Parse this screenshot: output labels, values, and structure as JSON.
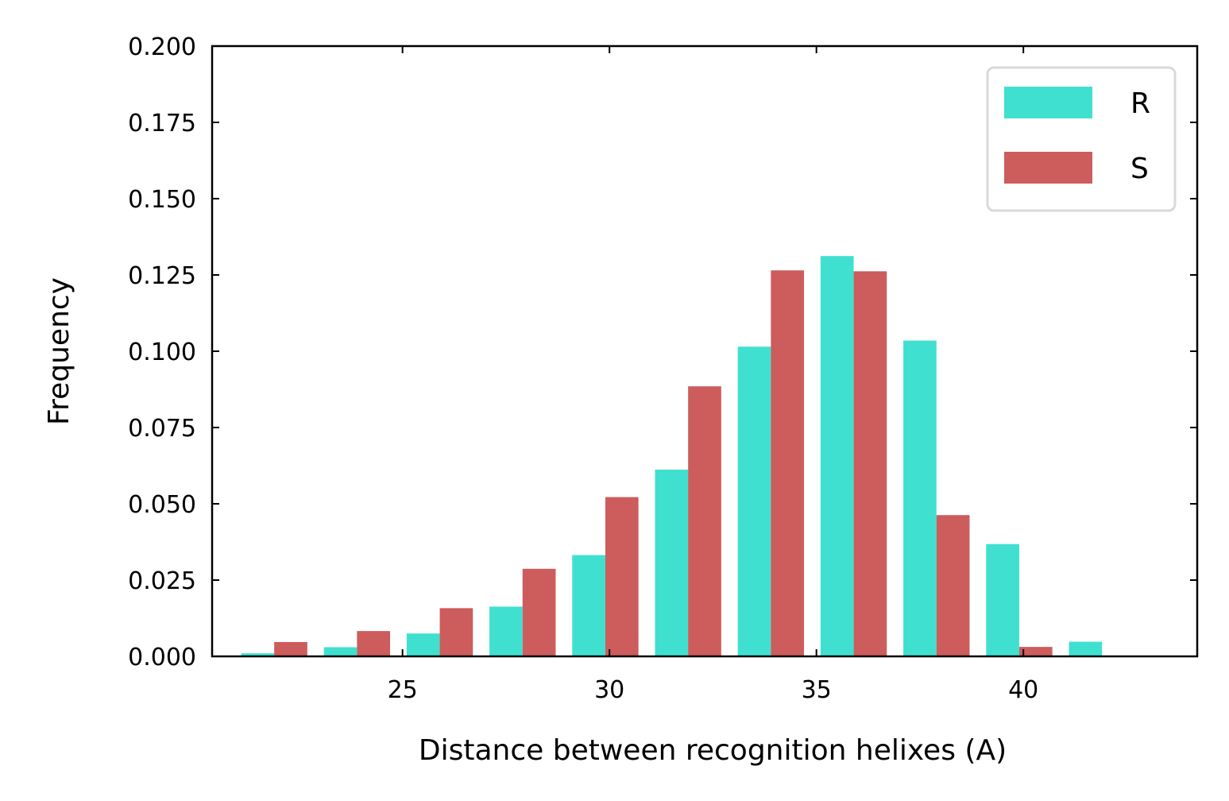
{
  "chart_data": {
    "type": "bar",
    "xlabel": "Distance between recognition helixes (A)",
    "ylabel": "Frequency",
    "xlim": [
      20.4,
      44.2
    ],
    "ylim": [
      0,
      0.2
    ],
    "xticks": [
      25,
      30,
      35,
      40
    ],
    "xtick_labels": [
      "25",
      "30",
      "35",
      "40"
    ],
    "yticks": [
      0,
      0.025,
      0.05,
      0.075,
      0.1,
      0.125,
      0.15,
      0.175,
      0.2
    ],
    "ytick_labels": [
      "0.000",
      "0.025",
      "0.050",
      "0.075",
      "0.100",
      "0.125",
      "0.150",
      "0.175",
      "0.200"
    ],
    "bin_edges": [
      21.1,
      23.1,
      25.1,
      27.1,
      29.1,
      31.1,
      33.1,
      35.1,
      37.1,
      39.1,
      41.1,
      43.1
    ],
    "series": [
      {
        "name": "R",
        "color": "#40E0D0",
        "values": [
          0.001,
          0.003,
          0.0075,
          0.0163,
          0.0332,
          0.0612,
          0.1015,
          0.1312,
          0.1035,
          0.0368,
          0.0048
        ]
      },
      {
        "name": "S",
        "color": "#CD5C5C",
        "values": [
          0.0047,
          0.0083,
          0.0158,
          0.0287,
          0.0522,
          0.0885,
          0.1265,
          0.1262,
          0.0463,
          0.0031,
          0.0
        ]
      }
    ],
    "legend_position": "upper-right",
    "grid": false,
    "tick_direction": "in"
  }
}
